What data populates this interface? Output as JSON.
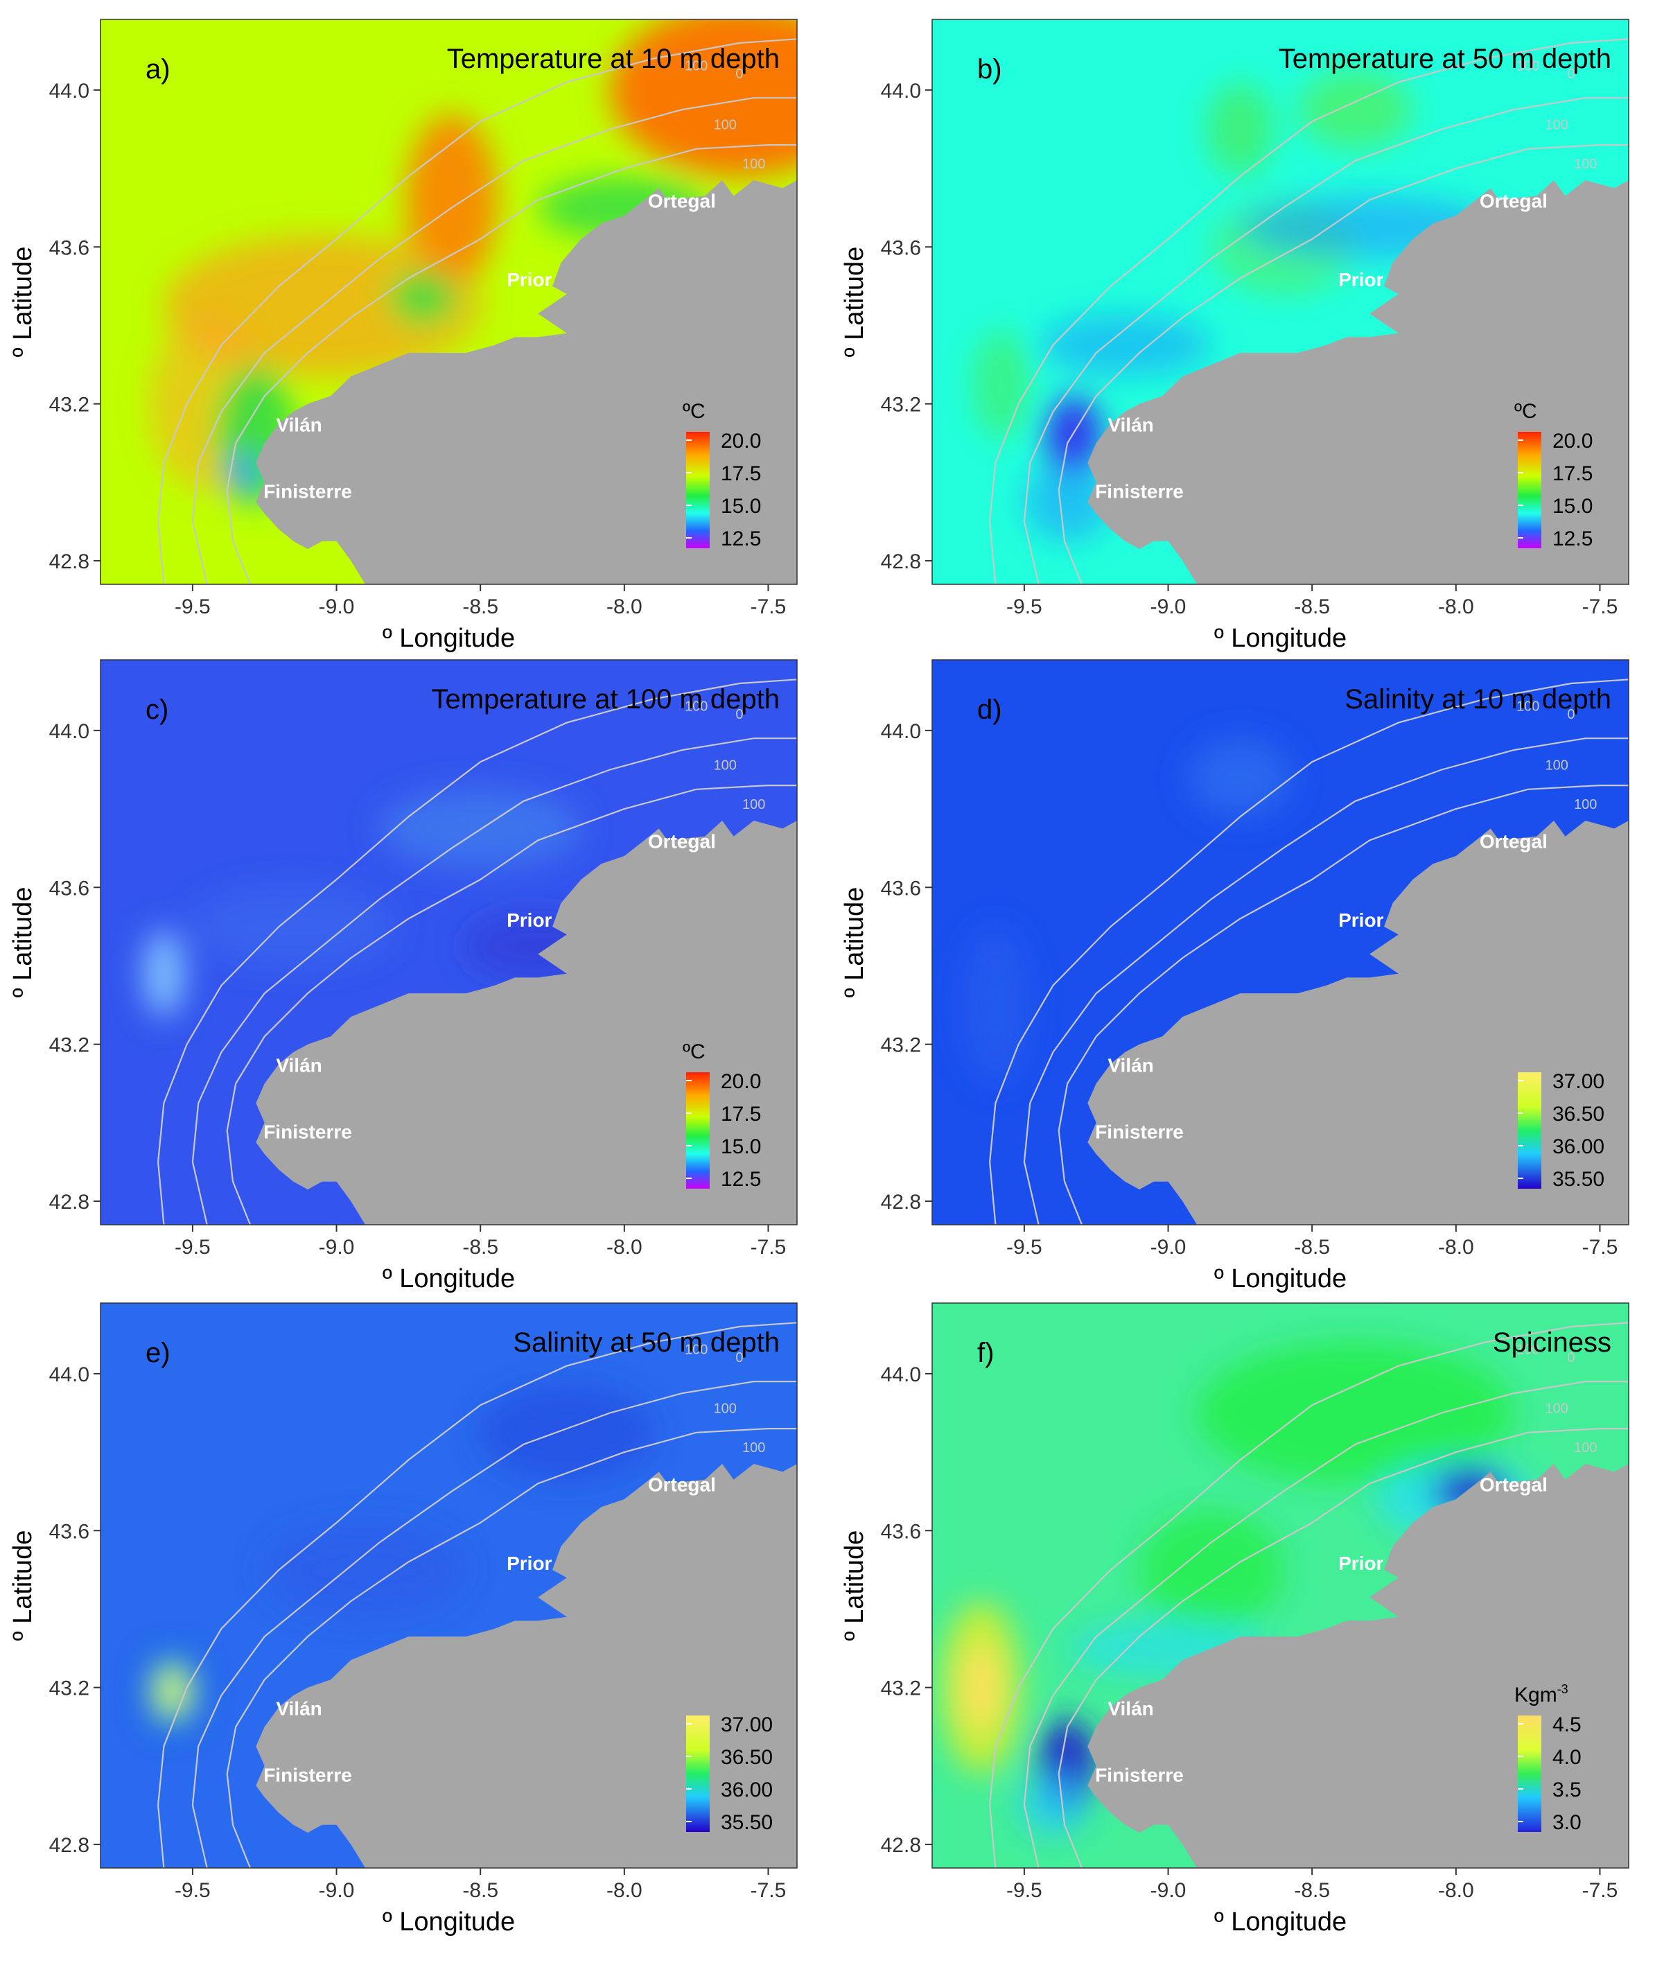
{
  "figure": {
    "panels": [
      {
        "id": "a",
        "tag": "a)",
        "title": "Temperature at 10 m depth",
        "variable": "temperature",
        "depth_m": 10,
        "field": {
          "base_color": "#bfff00",
          "blobs": [
            {
              "lon": -7.6,
              "lat": 44.0,
              "rlon": 0.45,
              "rlat": 0.22,
              "color": "#ff6a00",
              "opacity": 0.9
            },
            {
              "lon": -8.6,
              "lat": 43.72,
              "rlon": 0.16,
              "rlat": 0.22,
              "color": "#ff7a00",
              "opacity": 0.85
            },
            {
              "lon": -9.05,
              "lat": 43.45,
              "rlon": 0.55,
              "rlat": 0.18,
              "color": "#ff9a1a",
              "opacity": 0.65
            },
            {
              "lon": -9.45,
              "lat": 43.2,
              "rlon": 0.2,
              "rlat": 0.22,
              "color": "#ffa52a",
              "opacity": 0.55
            },
            {
              "lon": -8.0,
              "lat": 43.7,
              "rlon": 0.3,
              "rlat": 0.08,
              "color": "#33dd44",
              "opacity": 0.85
            },
            {
              "lon": -8.7,
              "lat": 43.47,
              "rlon": 0.12,
              "rlat": 0.07,
              "color": "#33dd44",
              "opacity": 0.85
            },
            {
              "lon": -9.28,
              "lat": 43.12,
              "rlon": 0.14,
              "rlat": 0.18,
              "color": "#33dd44",
              "opacity": 0.9
            },
            {
              "lon": -9.33,
              "lat": 43.02,
              "rlon": 0.05,
              "rlat": 0.06,
              "color": "#3399ff",
              "opacity": 0.95
            }
          ]
        },
        "legend": {
          "unit": "ºC",
          "ticks": [
            "20.0",
            "17.5",
            "15.0",
            "12.5"
          ],
          "palette": "temperature"
        }
      },
      {
        "id": "b",
        "tag": "b)",
        "title": "Temperature at 50 m depth",
        "variable": "temperature",
        "depth_m": 50,
        "field": {
          "base_color": "#22ffdd",
          "blobs": [
            {
              "lon": -8.75,
              "lat": 43.9,
              "rlon": 0.12,
              "rlat": 0.12,
              "color": "#44ee66",
              "opacity": 0.8
            },
            {
              "lon": -8.35,
              "lat": 43.95,
              "rlon": 0.2,
              "rlat": 0.1,
              "color": "#55ee55",
              "opacity": 0.7
            },
            {
              "lon": -8.6,
              "lat": 43.6,
              "rlon": 0.25,
              "rlat": 0.12,
              "color": "#55ee55",
              "opacity": 0.6
            },
            {
              "lon": -9.58,
              "lat": 43.25,
              "rlon": 0.1,
              "rlat": 0.14,
              "color": "#44ee66",
              "opacity": 0.7
            },
            {
              "lon": -8.3,
              "lat": 43.65,
              "rlon": 0.45,
              "rlat": 0.08,
              "color": "#1a99ff",
              "opacity": 0.6
            },
            {
              "lon": -9.15,
              "lat": 43.35,
              "rlon": 0.3,
              "rlat": 0.08,
              "color": "#1a99ff",
              "opacity": 0.55
            },
            {
              "lon": -9.33,
              "lat": 43.12,
              "rlon": 0.1,
              "rlat": 0.1,
              "color": "#3333ee",
              "opacity": 0.95
            },
            {
              "lon": -9.35,
              "lat": 42.95,
              "rlon": 0.15,
              "rlat": 0.1,
              "color": "#1a99ff",
              "opacity": 0.6
            }
          ]
        },
        "legend": {
          "unit": "ºC",
          "ticks": [
            "20.0",
            "17.5",
            "15.0",
            "12.5"
          ],
          "palette": "temperature"
        }
      },
      {
        "id": "c",
        "tag": "c)",
        "title": "Temperature at 100 m depth",
        "variable": "temperature",
        "depth_m": 100,
        "field": {
          "base_color": "#3355ee",
          "blobs": [
            {
              "lon": -9.6,
              "lat": 43.38,
              "rlon": 0.07,
              "rlat": 0.11,
              "color": "#88ccff",
              "opacity": 0.9
            },
            {
              "lon": -8.5,
              "lat": 43.75,
              "rlon": 0.35,
              "rlat": 0.1,
              "color": "#4488ee",
              "opacity": 0.6
            },
            {
              "lon": -9.15,
              "lat": 43.5,
              "rlon": 0.35,
              "rlat": 0.1,
              "color": "#4077ee",
              "opacity": 0.4
            },
            {
              "lon": -8.3,
              "lat": 43.45,
              "rlon": 0.25,
              "rlat": 0.08,
              "color": "#3333cc",
              "opacity": 0.5
            }
          ]
        },
        "legend": {
          "unit": "ºC",
          "ticks": [
            "20.0",
            "17.5",
            "15.0",
            "12.5"
          ],
          "palette": "temperature"
        }
      },
      {
        "id": "d",
        "tag": "d)",
        "title": "Salinity at 10 m depth",
        "variable": "salinity",
        "depth_m": 10,
        "field": {
          "base_color": "#1a4fee",
          "blobs": [
            {
              "lon": -8.75,
              "lat": 43.88,
              "rlon": 0.18,
              "rlat": 0.1,
              "color": "#3377ee",
              "opacity": 0.6
            },
            {
              "lon": -9.6,
              "lat": 43.3,
              "rlon": 0.12,
              "rlat": 0.2,
              "color": "#2a66ee",
              "opacity": 0.45
            }
          ]
        },
        "legend": {
          "unit": "",
          "ticks": [
            "37.00",
            "36.50",
            "36.00",
            "35.50"
          ],
          "palette": "salinity"
        }
      },
      {
        "id": "e",
        "tag": "e)",
        "title": "Salinity at 50 m depth",
        "variable": "salinity",
        "depth_m": 50,
        "field": {
          "base_color": "#2a6aee",
          "blobs": [
            {
              "lon": -9.57,
              "lat": 43.19,
              "rlon": 0.1,
              "rlat": 0.1,
              "color": "#1a33dd",
              "opacity": 0.95
            },
            {
              "lon": -9.57,
              "lat": 43.19,
              "rlon": 0.075,
              "rlat": 0.08,
              "color": "#22ee99",
              "opacity": 1.0
            },
            {
              "lon": -9.57,
              "lat": 43.19,
              "rlon": 0.04,
              "rlat": 0.05,
              "color": "#f0f060",
              "opacity": 1.0
            },
            {
              "lon": -8.2,
              "lat": 43.85,
              "rlon": 0.3,
              "rlat": 0.12,
              "color": "#2244dd",
              "opacity": 0.55
            },
            {
              "lon": -8.9,
              "lat": 43.5,
              "rlon": 0.35,
              "rlat": 0.12,
              "color": "#2a55e6",
              "opacity": 0.45
            }
          ]
        },
        "legend": {
          "unit": "",
          "ticks": [
            "37.00",
            "36.50",
            "36.00",
            "35.50"
          ],
          "palette": "salinity"
        }
      },
      {
        "id": "f",
        "tag": "f)",
        "title": "Spiciness",
        "variable": "spiciness",
        "depth_m": null,
        "field": {
          "base_color": "#44ee99",
          "blobs": [
            {
              "lon": -8.35,
              "lat": 43.9,
              "rlon": 0.55,
              "rlat": 0.18,
              "color": "#22ee44",
              "opacity": 0.8
            },
            {
              "lon": -8.85,
              "lat": 43.5,
              "rlon": 0.25,
              "rlat": 0.15,
              "color": "#22ee44",
              "opacity": 0.75
            },
            {
              "lon": -9.65,
              "lat": 43.2,
              "rlon": 0.14,
              "rlat": 0.22,
              "color": "#ccee33",
              "opacity": 0.95
            },
            {
              "lon": -9.65,
              "lat": 43.2,
              "rlon": 0.07,
              "rlat": 0.11,
              "color": "#ffe060",
              "opacity": 0.95
            },
            {
              "lon": -8.0,
              "lat": 43.68,
              "rlon": 0.28,
              "rlat": 0.1,
              "color": "#22ddff",
              "opacity": 0.7
            },
            {
              "lon": -7.95,
              "lat": 43.7,
              "rlon": 0.13,
              "rlat": 0.06,
              "color": "#2222cc",
              "opacity": 0.9
            },
            {
              "lon": -9.0,
              "lat": 43.3,
              "rlon": 0.35,
              "rlat": 0.07,
              "color": "#22ddff",
              "opacity": 0.6
            },
            {
              "lon": -9.35,
              "lat": 43.0,
              "rlon": 0.1,
              "rlat": 0.12,
              "color": "#2222cc",
              "opacity": 0.95
            },
            {
              "lon": -9.4,
              "lat": 42.9,
              "rlon": 0.12,
              "rlat": 0.08,
              "color": "#22ccff",
              "opacity": 0.7
            }
          ]
        },
        "legend": {
          "unit": "Kgm",
          "unit_superscript": "-3",
          "ticks": [
            "4.5",
            "4.0",
            "3.5",
            "3.0"
          ],
          "palette": "spiciness"
        }
      }
    ],
    "axes": {
      "x_label": "º Longitude",
      "y_label": "º Latitude",
      "x_ticks": [
        -9.5,
        -9.0,
        -8.5,
        -8.0,
        -7.5
      ],
      "x_tick_labels": [
        "-9.5",
        "-9.0",
        "-8.5",
        "-8.0",
        "-7.5"
      ],
      "y_ticks": [
        42.8,
        43.2,
        43.6,
        44.0
      ],
      "y_tick_labels": [
        "42.8",
        "43.2",
        "43.6",
        "44.0"
      ],
      "x_range": [
        -9.82,
        -7.4
      ],
      "y_range": [
        42.74,
        44.18
      ]
    },
    "places": [
      {
        "name": "Ortegal",
        "lon": -7.8,
        "lat": 43.7
      },
      {
        "name": "Prior",
        "lon": -8.33,
        "lat": 43.5
      },
      {
        "name": "Vilán",
        "lon": -9.13,
        "lat": 43.13
      },
      {
        "name": "Finisterre",
        "lon": -9.1,
        "lat": 42.96
      }
    ],
    "isobath_labels": [
      {
        "text": "100",
        "lon": -7.75,
        "lat": 44.05
      },
      {
        "text": "100",
        "lon": -7.65,
        "lat": 43.9
      },
      {
        "text": "100",
        "lon": -7.55,
        "lat": 43.8
      },
      {
        "text": "0",
        "lon": -7.6,
        "lat": 44.03
      }
    ],
    "colors": {
      "land": "#a6a6a6",
      "isobath": "#c8c8c8",
      "place_label": "#ffffff",
      "isobath_label": "#c8c8c8"
    }
  },
  "chart_data": [
    {
      "type": "heatmap",
      "panel": "a)",
      "title": "Temperature at 10 m depth",
      "xlabel": "º Longitude",
      "ylabel": "º Latitude",
      "x_ticks": [
        -9.5,
        -9.0,
        -8.5,
        -8.0,
        -7.5
      ],
      "y_ticks": [
        42.8,
        43.2,
        43.6,
        44.0
      ],
      "colorbar": {
        "unit": "ºC",
        "ticks": [
          20.0,
          17.5,
          15.0,
          12.5
        ]
      },
      "annotations": [
        "Ortegal",
        "Prior",
        "Vilán",
        "Finisterre"
      ]
    },
    {
      "type": "heatmap",
      "panel": "b)",
      "title": "Temperature at 50 m depth",
      "xlabel": "º Longitude",
      "ylabel": "º Latitude",
      "x_ticks": [
        -9.5,
        -9.0,
        -8.5,
        -8.0,
        -7.5
      ],
      "y_ticks": [
        42.8,
        43.2,
        43.6,
        44.0
      ],
      "colorbar": {
        "unit": "ºC",
        "ticks": [
          20.0,
          17.5,
          15.0,
          12.5
        ]
      },
      "annotations": [
        "Ortegal",
        "Prior",
        "Vilán",
        "Finisterre"
      ]
    },
    {
      "type": "heatmap",
      "panel": "c)",
      "title": "Temperature at 100 m depth",
      "xlabel": "º Longitude",
      "ylabel": "º Latitude",
      "x_ticks": [
        -9.5,
        -9.0,
        -8.5,
        -8.0,
        -7.5
      ],
      "y_ticks": [
        42.8,
        43.2,
        43.6,
        44.0
      ],
      "colorbar": {
        "unit": "ºC",
        "ticks": [
          20.0,
          17.5,
          15.0,
          12.5
        ]
      },
      "annotations": [
        "Ortegal",
        "Prior",
        "Vilán",
        "Finisterre"
      ]
    },
    {
      "type": "heatmap",
      "panel": "d)",
      "title": "Salinity at 10 m depth",
      "xlabel": "º Longitude",
      "ylabel": "º Latitude",
      "x_ticks": [
        -9.5,
        -9.0,
        -8.5,
        -8.0,
        -7.5
      ],
      "y_ticks": [
        42.8,
        43.2,
        43.6,
        44.0
      ],
      "colorbar": {
        "unit": "",
        "ticks": [
          37.0,
          36.5,
          36.0,
          35.5
        ]
      },
      "annotations": [
        "Ortegal",
        "Prior",
        "Vilán",
        "Finisterre"
      ]
    },
    {
      "type": "heatmap",
      "panel": "e)",
      "title": "Salinity at 50 m depth",
      "xlabel": "º Longitude",
      "ylabel": "º Latitude",
      "x_ticks": [
        -9.5,
        -9.0,
        -8.5,
        -8.0,
        -7.5
      ],
      "y_ticks": [
        42.8,
        43.2,
        43.6,
        44.0
      ],
      "colorbar": {
        "unit": "",
        "ticks": [
          37.0,
          36.5,
          36.0,
          35.5
        ]
      },
      "annotations": [
        "Ortegal",
        "Prior",
        "Vilán",
        "Finisterre"
      ]
    },
    {
      "type": "heatmap",
      "panel": "f)",
      "title": "Spiciness",
      "xlabel": "º Longitude",
      "ylabel": "º Latitude",
      "x_ticks": [
        -9.5,
        -9.0,
        -8.5,
        -8.0,
        -7.5
      ],
      "y_ticks": [
        42.8,
        43.2,
        43.6,
        44.0
      ],
      "colorbar": {
        "unit": "Kgm-3",
        "ticks": [
          4.5,
          4.0,
          3.5,
          3.0
        ]
      },
      "annotations": [
        "Ortegal",
        "Prior",
        "Vilán",
        "Finisterre"
      ]
    }
  ]
}
